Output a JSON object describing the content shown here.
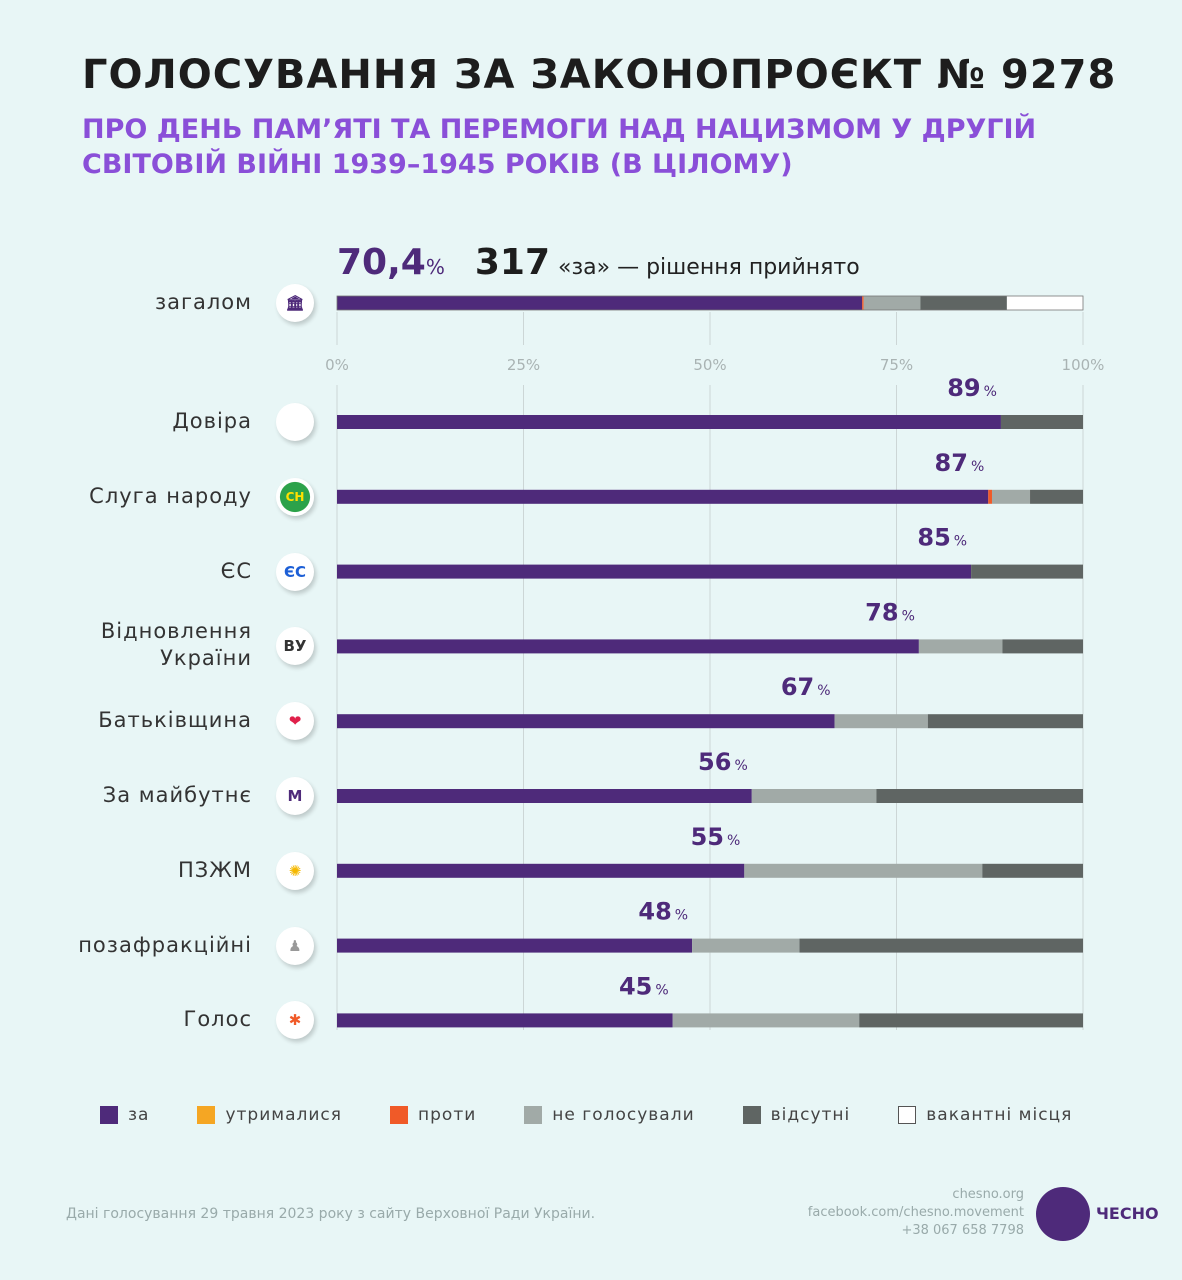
{
  "title": "ГОЛОСУВАННЯ ЗА ЗАКОНОПРОЄКТ № 9278",
  "subtitle": "ПРО ДЕНЬ ПАМ’ЯТІ ТА ПЕРЕМОГИ НАД НАЦИЗМОМ У ДРУГІЙ СВІТОВІЙ ВІЙНІ 1939–1945 РОКІВ (В ЦІЛОМУ)",
  "summary": {
    "percent": "70,4",
    "percent_sign": "%",
    "count": "317",
    "count_text": "«за» — рішення прийнято"
  },
  "colors": {
    "for": "#4e2a7a",
    "abstain": "#f5a623",
    "against": "#f05a28",
    "not_voted": "#a1aaa7",
    "absent": "#5f6563",
    "vacant": "#ffffff"
  },
  "chart_data": {
    "type": "bar",
    "stacked": true,
    "orientation": "horizontal",
    "xlim": [
      0,
      100
    ],
    "x_ticks": [
      "0%",
      "25%",
      "50%",
      "75%",
      "100%"
    ],
    "series_names": [
      "за",
      "утрималися",
      "проти",
      "не голосували",
      "відсутні",
      "вакантні місця"
    ],
    "overall": {
      "label": "загалом",
      "icon": "parliament-icon",
      "values": [
        70.4,
        0,
        0.2,
        7.6,
        11.6,
        10.2
      ]
    },
    "rows": [
      {
        "label": "Довіра",
        "icon": "dovira-logo",
        "pct_label": "89",
        "values": [
          89,
          0,
          0,
          0,
          11
        ]
      },
      {
        "label": "Слуга народу",
        "icon": "sluha-narodu-logo",
        "icon_text": "СН",
        "pct_label": "87",
        "values": [
          87.3,
          0,
          0.5,
          5.1,
          7.1
        ]
      },
      {
        "label": "ЄС",
        "icon": "yes-logo",
        "icon_text": "ЄС",
        "pct_label": "85",
        "values": [
          85,
          0,
          0,
          0,
          15
        ]
      },
      {
        "label": "Відновлення України",
        "icon": "vu-logo",
        "icon_text": "ВУ",
        "pct_label": "78",
        "values": [
          78,
          0,
          0,
          11.2,
          10.8
        ]
      },
      {
        "label": "Батьківщина",
        "icon": "heart-icon",
        "icon_text": "❤",
        "pct_label": "67",
        "values": [
          66.7,
          0,
          0,
          12.5,
          20.8
        ]
      },
      {
        "label": "За майбутнє",
        "icon": "za-maybutnie-logo",
        "icon_text": "M",
        "pct_label": "56",
        "values": [
          55.6,
          0,
          0,
          16.7,
          27.7
        ]
      },
      {
        "label": "ПЗЖМ",
        "icon": "pzzhm-logo",
        "icon_text": "✺",
        "pct_label": "55",
        "values": [
          54.6,
          0,
          0,
          31.9,
          13.5
        ]
      },
      {
        "label": "позафракційні",
        "icon": "person-icon",
        "icon_text": "♟",
        "pct_label": "48",
        "values": [
          47.6,
          0,
          0,
          14.4,
          38
        ]
      },
      {
        "label": "Голос",
        "icon": "holos-logo",
        "icon_text": "✱",
        "pct_label": "45",
        "values": [
          45,
          0,
          0,
          25,
          30
        ]
      }
    ]
  },
  "legend": [
    "за",
    "утрималися",
    "проти",
    "не голосували",
    "відсутні",
    "вакантні місця"
  ],
  "footer": {
    "source": "Дані голосування 29 травня 2023 року з сайту Верховної Ради України.",
    "site": "chesno.org",
    "facebook": "facebook.com/chesno.movement",
    "phone": "+38 067 658 7798",
    "brand": "ЧЕСНО"
  }
}
